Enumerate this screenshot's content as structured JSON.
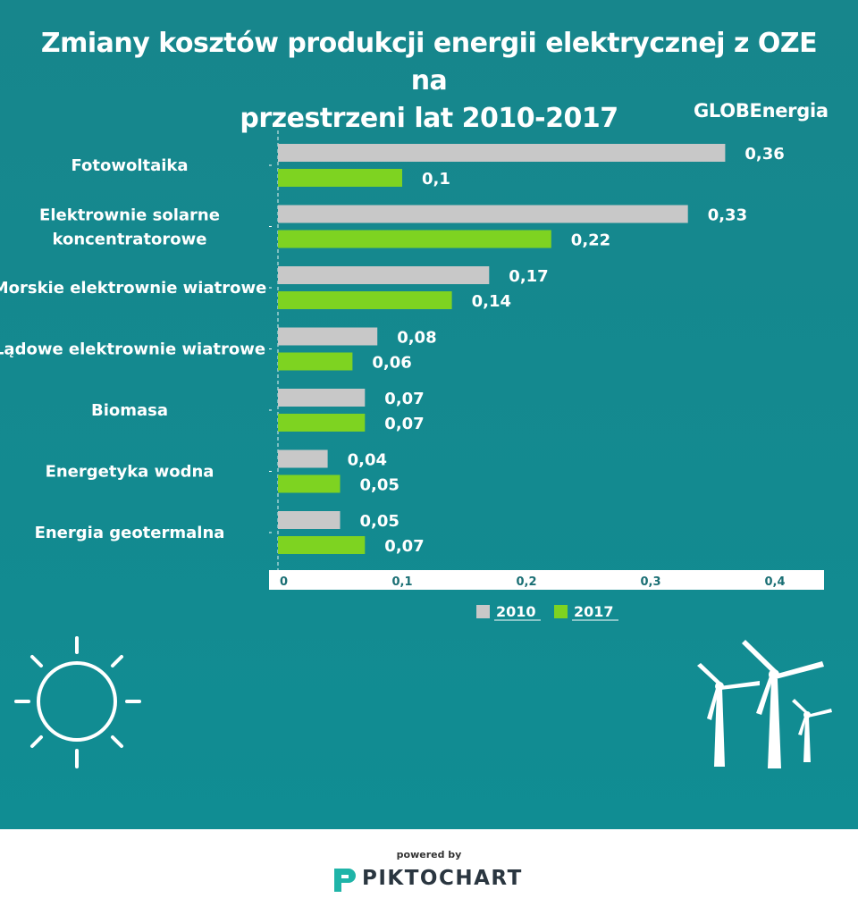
{
  "title_line1": "Zmiany kosztów produkcji energii elektrycznej z OZE na",
  "title_line2": "przestrzeni lat 2010-2017",
  "brand": "GLOBEnergia",
  "colors": {
    "background": "#148a90",
    "series_2010": "#c8c8c8",
    "series_2017": "#7ed321",
    "text": "#ffffff"
  },
  "chart_data": {
    "type": "bar",
    "orientation": "horizontal",
    "title": "Zmiany kosztów produkcji energii elektrycznej z OZE na przestrzeni lat 2010-2017",
    "categories": [
      [
        "Fotowoltaika"
      ],
      [
        "Elektrownie solarne",
        "koncentratorowe"
      ],
      [
        "Morskie elektrownie wiatrowe"
      ],
      [
        "Lądowe elektrownie wiatrowe"
      ],
      [
        "Biomasa"
      ],
      [
        "Energetyka wodna"
      ],
      [
        "Energia geotermalna"
      ]
    ],
    "series": [
      {
        "name": "2010",
        "values": [
          0.36,
          0.33,
          0.17,
          0.08,
          0.07,
          0.04,
          0.05
        ],
        "labels": [
          "0,36",
          "0,33",
          "0,17",
          "0,08",
          "0,07",
          "0,04",
          "0,05"
        ]
      },
      {
        "name": "2017",
        "values": [
          0.1,
          0.22,
          0.14,
          0.06,
          0.07,
          0.05,
          0.07
        ],
        "labels": [
          "0,1",
          "0,22",
          "0,14",
          "0,06",
          "0,07",
          "0,05",
          "0,07"
        ]
      }
    ],
    "xlim": [
      0,
      0.44
    ],
    "ticks": [
      0,
      0.1,
      0.2,
      0.3,
      0.4
    ],
    "tick_labels": [
      "0",
      "0,1",
      "0,2",
      "0,3",
      "0,4"
    ],
    "legend_position": "bottom",
    "xlabel": "",
    "ylabel": ""
  },
  "footer": {
    "powered": "powered by",
    "company": "PIKTOCHART"
  }
}
